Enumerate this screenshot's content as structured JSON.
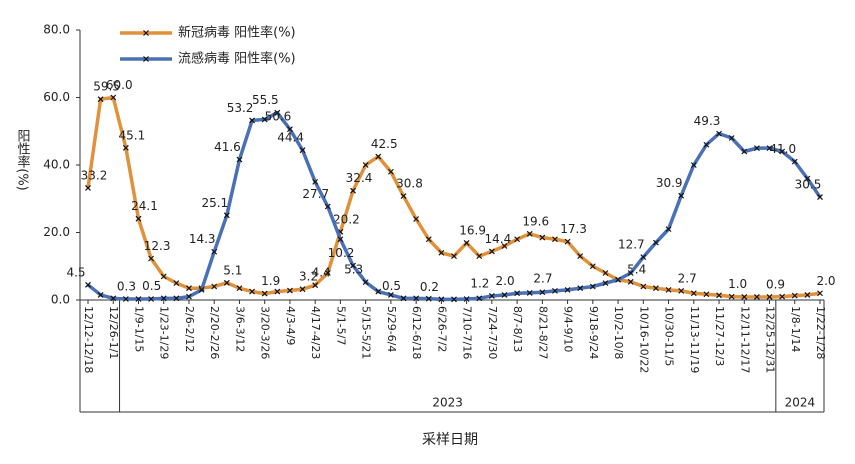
{
  "chart_data": {
    "type": "line",
    "y_label": "阳性率(%)",
    "x_label": "采样日期",
    "categories": [
      "12/12-12/18",
      null,
      "12/26-1/1",
      null,
      "1/9-1/15",
      null,
      "1/23-1/29",
      null,
      "2/6-2/12",
      null,
      "2/20-2/26",
      null,
      "3/6-3/12",
      null,
      "3/20-3/26",
      null,
      "4/3-4/9",
      null,
      "4/17-4/23",
      null,
      "5/1-5/7",
      null,
      "5/15-5/21",
      null,
      "5/29-6/4",
      null,
      "6/12-6/18",
      null,
      "6/26-7/2",
      null,
      "7/10-7/16",
      null,
      "7/24-7/30",
      null,
      "8/7-8/13",
      null,
      "8/21-8/27",
      null,
      "9/4-9/10",
      null,
      "9/18-9/24",
      null,
      "10/2-10/8",
      null,
      "10/16-10/22",
      null,
      "10/30-11/5",
      null,
      "11/13-11/19",
      null,
      "11/27-12/3",
      null,
      "12/11-12/17",
      null,
      "12/25-12/31",
      null,
      "1/8-1/14",
      null,
      "1/22-1/28"
    ],
    "x_groups": [
      "2023",
      "2024"
    ],
    "ylim": [
      0,
      80
    ],
    "yticks": [
      {
        "value": 0,
        "label": "0.0"
      },
      {
        "value": 20,
        "label": "20.0"
      },
      {
        "value": 40,
        "label": "40.0"
      },
      {
        "value": 60,
        "label": "60.0"
      },
      {
        "value": 80,
        "label": "80.0"
      }
    ],
    "series": [
      {
        "name": "新冠病毒 阳性率(%)",
        "color": "#e0913a",
        "values": [
          33.2,
          59.5,
          60.0,
          45.1,
          24.1,
          12.3,
          7,
          5,
          3.5,
          3.5,
          4,
          5.1,
          3.5,
          2.5,
          1.9,
          2.5,
          2.8,
          3.2,
          4.4,
          8,
          20.2,
          32.4,
          40,
          42.5,
          38,
          30.8,
          24,
          18,
          14,
          13,
          16.9,
          13,
          14.4,
          16,
          18,
          19.6,
          18.5,
          18,
          17.3,
          13,
          10,
          8,
          6,
          5.4,
          4,
          3.5,
          3,
          2.7,
          2,
          1.7,
          1.4,
          1.0,
          0.9,
          0.9,
          0.9,
          1,
          1.3,
          1.5,
          2.0
        ],
        "value_labels": [
          "33.2",
          "59.5",
          "60.0",
          "45.1",
          "24.1",
          "12.3",
          null,
          null,
          null,
          null,
          null,
          "5.1",
          null,
          null,
          "1.9",
          null,
          null,
          "3.2",
          "4.4",
          null,
          "20.2",
          "32.4",
          null,
          "42.5",
          null,
          "30.8",
          null,
          null,
          null,
          null,
          "16.9",
          null,
          "14.4",
          null,
          null,
          "19.6",
          null,
          null,
          "17.3",
          null,
          null,
          null,
          null,
          "5.4",
          null,
          null,
          null,
          "2.7",
          null,
          null,
          null,
          "1.0",
          null,
          null,
          "0.9",
          null,
          null,
          null,
          "2.0"
        ]
      },
      {
        "name": "流感病毒 阳性率(%)",
        "color": "#4a70b5",
        "values": [
          4.5,
          1.5,
          0.5,
          0.3,
          0.3,
          0.3,
          0.5,
          0.5,
          1,
          3,
          14.3,
          25.1,
          41.6,
          53.2,
          53.5,
          55.5,
          50.6,
          44.4,
          35,
          27.7,
          18,
          10.2,
          5.3,
          2.5,
          1.5,
          0.5,
          0.5,
          0.4,
          0.2,
          0.2,
          0.3,
          0.5,
          1.2,
          1.5,
          2.0,
          2.1,
          2.3,
          2.7,
          3,
          3.5,
          4,
          5,
          6,
          8,
          12.7,
          17,
          21,
          30.9,
          40,
          46,
          49.3,
          48,
          44,
          45,
          45,
          44,
          41.0,
          36,
          30.5
        ],
        "value_labels": [
          "4.5",
          null,
          null,
          null,
          "0.3",
          null,
          "0.5",
          null,
          null,
          null,
          "14.3",
          "25.1",
          "41.6",
          "53.2",
          null,
          "55.5",
          "50.6",
          "44.4",
          null,
          "27.7",
          null,
          "10.2",
          "5.3",
          null,
          null,
          "0.5",
          null,
          null,
          "0.2",
          null,
          null,
          null,
          "1.2",
          null,
          "2.0",
          null,
          null,
          "2.7",
          null,
          null,
          null,
          null,
          null,
          null,
          "12.7",
          null,
          null,
          "30.9",
          null,
          null,
          "49.3",
          null,
          null,
          null,
          null,
          null,
          "41.0",
          null,
          "30.5"
        ]
      }
    ],
    "legend": "top-left",
    "markers": true
  }
}
